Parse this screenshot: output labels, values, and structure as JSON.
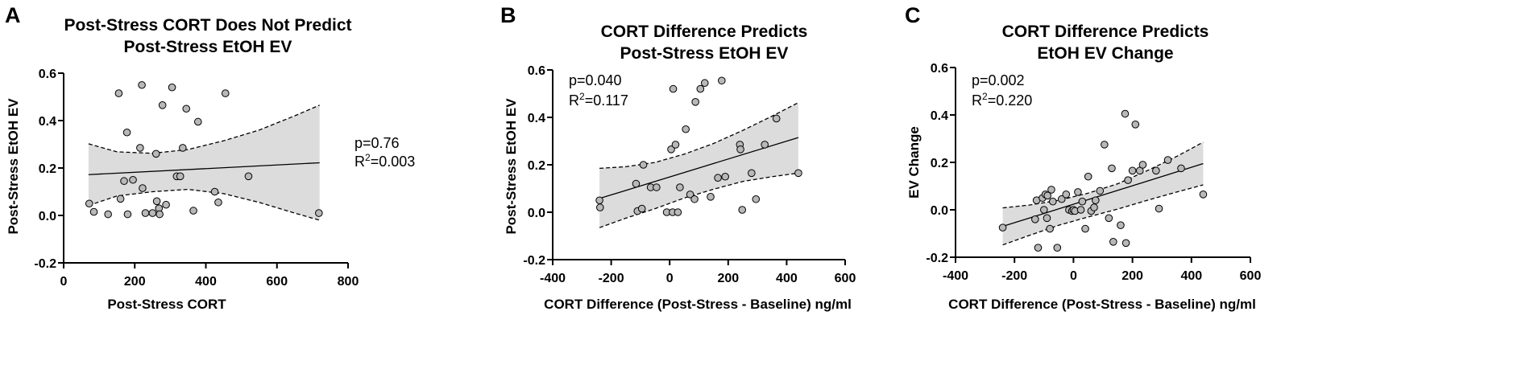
{
  "chart_data": [
    {
      "type": "scatter",
      "panel": "A",
      "title": [
        "Post-Stress CORT Does Not Predict",
        "Post-Stress EtOH EV"
      ],
      "xlabel": "Post-Stress CORT",
      "ylabel": "Post-Stress EtOH EV",
      "xlim": [
        0,
        800
      ],
      "ylim": [
        -0.2,
        0.6
      ],
      "xticks": [
        0,
        200,
        400,
        600,
        800
      ],
      "xtick_labels": [
        "0",
        "200",
        "400",
        "600",
        "800"
      ],
      "yticks": [
        -0.2,
        0.0,
        0.2,
        0.4,
        0.6
      ],
      "ytick_labels": [
        "-0.2",
        "0.0",
        "0.2",
        "0.4",
        "0.6"
      ],
      "stats": {
        "p": "p=0.76",
        "r2_prefix": "R",
        "r2_sup": "2",
        "r2_value": "=0.003",
        "placement": "right-outside"
      },
      "fit": {
        "x": [
          70,
          720
        ],
        "y": [
          0.172,
          0.222
        ]
      },
      "ci_band": {
        "x": [
          70,
          150,
          250,
          350,
          450,
          550,
          650,
          720
        ],
        "upper": [
          0.302,
          0.268,
          0.262,
          0.278,
          0.315,
          0.36,
          0.42,
          0.465
        ],
        "lower": [
          0.042,
          0.082,
          0.1,
          0.11,
          0.092,
          0.055,
          0.01,
          -0.02
        ]
      },
      "points": [
        {
          "x": 72,
          "y": 0.05
        },
        {
          "x": 85,
          "y": 0.015
        },
        {
          "x": 125,
          "y": 0.005
        },
        {
          "x": 155,
          "y": 0.515
        },
        {
          "x": 160,
          "y": 0.07
        },
        {
          "x": 170,
          "y": 0.145
        },
        {
          "x": 178,
          "y": 0.35
        },
        {
          "x": 180,
          "y": 0.005
        },
        {
          "x": 195,
          "y": 0.15
        },
        {
          "x": 215,
          "y": 0.285
        },
        {
          "x": 220,
          "y": 0.55
        },
        {
          "x": 222,
          "y": 0.115
        },
        {
          "x": 230,
          "y": 0.01
        },
        {
          "x": 250,
          "y": 0.01
        },
        {
          "x": 260,
          "y": 0.26
        },
        {
          "x": 262,
          "y": 0.06
        },
        {
          "x": 268,
          "y": 0.03
        },
        {
          "x": 270,
          "y": 0.005
        },
        {
          "x": 278,
          "y": 0.465
        },
        {
          "x": 288,
          "y": 0.045
        },
        {
          "x": 305,
          "y": 0.54
        },
        {
          "x": 318,
          "y": 0.165
        },
        {
          "x": 328,
          "y": 0.165
        },
        {
          "x": 335,
          "y": 0.285
        },
        {
          "x": 345,
          "y": 0.45
        },
        {
          "x": 365,
          "y": 0.02
        },
        {
          "x": 378,
          "y": 0.395
        },
        {
          "x": 425,
          "y": 0.1
        },
        {
          "x": 435,
          "y": 0.055
        },
        {
          "x": 455,
          "y": 0.515
        },
        {
          "x": 520,
          "y": 0.165
        },
        {
          "x": 718,
          "y": 0.01
        }
      ]
    },
    {
      "type": "scatter",
      "panel": "B",
      "title": [
        "CORT Difference Predicts",
        "Post-Stress EtOH EV"
      ],
      "xlabel": "CORT Difference (Post-Stress - Baseline) ng/ml",
      "ylabel": "Post-Stress EtOH EV",
      "xlim": [
        -400,
        600
      ],
      "ylim": [
        -0.2,
        0.6
      ],
      "xticks": [
        -400,
        -200,
        0,
        200,
        400,
        600
      ],
      "xtick_labels": [
        "-400",
        "-200",
        "0",
        "200",
        "400",
        "600"
      ],
      "yticks": [
        -0.2,
        0.0,
        0.2,
        0.4,
        0.6
      ],
      "ytick_labels": [
        "-0.2",
        "0.0",
        "0.2",
        "0.4",
        "0.6"
      ],
      "stats": {
        "p": "p=0.040",
        "r2_prefix": "R",
        "r2_sup": "2",
        "r2_value": "=0.117",
        "placement": "top-left"
      },
      "fit": {
        "x": [
          -240,
          440
        ],
        "y": [
          0.058,
          0.315
        ]
      },
      "ci_band": {
        "x": [
          -240,
          -150,
          -50,
          50,
          150,
          250,
          350,
          440
        ],
        "upper": [
          0.185,
          0.192,
          0.21,
          0.245,
          0.29,
          0.345,
          0.405,
          0.462
        ],
        "lower": [
          -0.065,
          -0.025,
          0.015,
          0.06,
          0.097,
          0.13,
          0.15,
          0.165
        ]
      },
      "points": [
        {
          "x": -240,
          "y": 0.05
        },
        {
          "x": -238,
          "y": 0.02
        },
        {
          "x": -115,
          "y": 0.12
        },
        {
          "x": -110,
          "y": 0.005
        },
        {
          "x": -95,
          "y": 0.015
        },
        {
          "x": -90,
          "y": 0.2
        },
        {
          "x": -65,
          "y": 0.105
        },
        {
          "x": -45,
          "y": 0.105
        },
        {
          "x": -10,
          "y": 0.0
        },
        {
          "x": 5,
          "y": 0.265
        },
        {
          "x": 10,
          "y": 0.0
        },
        {
          "x": 12,
          "y": 0.52
        },
        {
          "x": 20,
          "y": 0.285
        },
        {
          "x": 28,
          "y": 0.0
        },
        {
          "x": 35,
          "y": 0.105
        },
        {
          "x": 55,
          "y": 0.35
        },
        {
          "x": 70,
          "y": 0.075
        },
        {
          "x": 85,
          "y": 0.055
        },
        {
          "x": 88,
          "y": 0.465
        },
        {
          "x": 105,
          "y": 0.52
        },
        {
          "x": 120,
          "y": 0.545
        },
        {
          "x": 140,
          "y": 0.065
        },
        {
          "x": 165,
          "y": 0.145
        },
        {
          "x": 178,
          "y": 0.555
        },
        {
          "x": 190,
          "y": 0.15
        },
        {
          "x": 240,
          "y": 0.285
        },
        {
          "x": 242,
          "y": 0.265
        },
        {
          "x": 248,
          "y": 0.01
        },
        {
          "x": 280,
          "y": 0.165
        },
        {
          "x": 295,
          "y": 0.055
        },
        {
          "x": 325,
          "y": 0.285
        },
        {
          "x": 365,
          "y": 0.395
        },
        {
          "x": 440,
          "y": 0.165
        }
      ]
    },
    {
      "type": "scatter",
      "panel": "C",
      "title": [
        "CORT Difference Predicts",
        "EtOH EV Change"
      ],
      "xlabel": "CORT Difference (Post-Stress - Baseline) ng/ml",
      "ylabel": "EV Change",
      "xlim": [
        -400,
        600
      ],
      "ylim": [
        -0.2,
        0.6
      ],
      "xticks": [
        -400,
        -200,
        0,
        200,
        400,
        600
      ],
      "xtick_labels": [
        "-400",
        "-200",
        "0",
        "200",
        "400",
        "600"
      ],
      "yticks": [
        -0.2,
        0.0,
        0.2,
        0.4,
        0.6
      ],
      "ytick_labels": [
        "-0.2",
        "0.0",
        "0.2",
        "0.4",
        "0.6"
      ],
      "stats": {
        "p": "p=0.002",
        "r2_prefix": "R",
        "r2_sup": "2",
        "r2_value": "=0.220",
        "placement": "top-left"
      },
      "fit": {
        "x": [
          -240,
          440
        ],
        "y": [
          -0.07,
          0.195
        ]
      },
      "ci_band": {
        "x": [
          -240,
          -150,
          -50,
          50,
          150,
          250,
          350,
          440
        ],
        "upper": [
          0.008,
          0.02,
          0.04,
          0.07,
          0.11,
          0.165,
          0.225,
          0.285
        ],
        "lower": [
          -0.148,
          -0.108,
          -0.065,
          -0.03,
          0.003,
          0.04,
          0.075,
          0.105
        ]
      },
      "points": [
        {
          "x": -240,
          "y": -0.075
        },
        {
          "x": -130,
          "y": -0.04
        },
        {
          "x": -125,
          "y": 0.04
        },
        {
          "x": -120,
          "y": -0.16
        },
        {
          "x": -105,
          "y": 0.05
        },
        {
          "x": -100,
          "y": 0.0
        },
        {
          "x": -95,
          "y": 0.065
        },
        {
          "x": -90,
          "y": -0.035
        },
        {
          "x": -88,
          "y": 0.06
        },
        {
          "x": -80,
          "y": -0.08
        },
        {
          "x": -75,
          "y": 0.085
        },
        {
          "x": -70,
          "y": 0.035
        },
        {
          "x": -55,
          "y": -0.16
        },
        {
          "x": -40,
          "y": 0.045
        },
        {
          "x": -25,
          "y": 0.065
        },
        {
          "x": -15,
          "y": 0.0
        },
        {
          "x": -5,
          "y": -0.005
        },
        {
          "x": 0,
          "y": 0.0
        },
        {
          "x": 5,
          "y": -0.005
        },
        {
          "x": 15,
          "y": 0.075
        },
        {
          "x": 25,
          "y": 0.0
        },
        {
          "x": 30,
          "y": 0.035
        },
        {
          "x": 40,
          "y": -0.08
        },
        {
          "x": 50,
          "y": 0.14
        },
        {
          "x": 60,
          "y": -0.005
        },
        {
          "x": 70,
          "y": 0.01
        },
        {
          "x": 75,
          "y": 0.04
        },
        {
          "x": 90,
          "y": 0.08
        },
        {
          "x": 105,
          "y": 0.275
        },
        {
          "x": 120,
          "y": -0.035
        },
        {
          "x": 130,
          "y": 0.175
        },
        {
          "x": 135,
          "y": -0.135
        },
        {
          "x": 160,
          "y": -0.065
        },
        {
          "x": 175,
          "y": 0.405
        },
        {
          "x": 178,
          "y": -0.14
        },
        {
          "x": 185,
          "y": 0.125
        },
        {
          "x": 200,
          "y": 0.165
        },
        {
          "x": 210,
          "y": 0.36
        },
        {
          "x": 225,
          "y": 0.165
        },
        {
          "x": 235,
          "y": 0.19
        },
        {
          "x": 280,
          "y": 0.165
        },
        {
          "x": 290,
          "y": 0.005
        },
        {
          "x": 320,
          "y": 0.21
        },
        {
          "x": 365,
          "y": 0.175
        },
        {
          "x": 440,
          "y": 0.065
        }
      ]
    }
  ]
}
